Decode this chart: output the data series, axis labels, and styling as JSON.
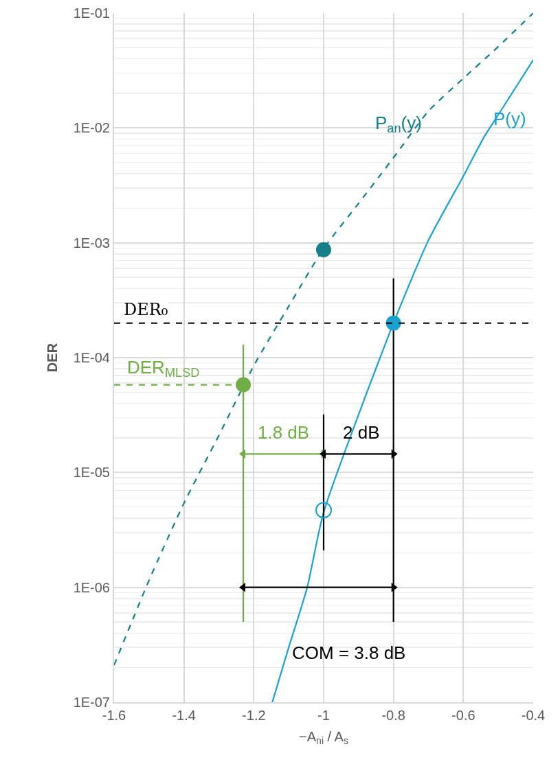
{
  "chart_data": {
    "type": "line",
    "xlabel": "−A$_{ni}$ / A$_{s}$",
    "ylabel": "DER",
    "log": "y",
    "grid": true,
    "xlim": [
      -1.6,
      -0.4
    ],
    "xticks": [
      -1.6,
      -1.4,
      -1.2,
      -1,
      -0.8,
      -0.6,
      -0.4
    ],
    "ylim": [
      1e-07,
      0.1
    ],
    "yticks": [
      {
        "value": 1e-07,
        "label": "1E-07"
      },
      {
        "value": 1e-06,
        "label": "1E-06"
      },
      {
        "value": 1e-05,
        "label": "1E-05"
      },
      {
        "value": 0.0001,
        "label": "1E-04"
      },
      {
        "value": 0.001,
        "label": "1E-03"
      },
      {
        "value": 0.01,
        "label": "1E-02"
      },
      {
        "value": 0.1,
        "label": "1E-01"
      }
    ],
    "series": [
      {
        "color": "#157f8a",
        "line_style": "dashed",
        "marker": "none",
        "x": [
          -1.6,
          -1.5,
          -1.4,
          -1.3,
          -1.2,
          -1.1,
          -1,
          -0.9,
          -0.8,
          -0.7,
          -0.6,
          -0.5,
          -0.4
        ],
        "values": [
          2.1e-07,
          1.15e-06,
          5.4e-06,
          2.1e-05,
          8.5e-05,
          0.00028,
          0.00089,
          0.0022,
          0.0055,
          0.014,
          0.027,
          0.051,
          0.1
        ]
      },
      {
        "color": "#1aa1cf",
        "line_style": "solid",
        "marker": "none",
        "x": [
          -1.147,
          -1.1,
          -1.047,
          -1,
          -0.8,
          -0.7,
          -0.6,
          -0.541,
          -0.5,
          -0.4
        ],
        "values": [
          1e-07,
          3e-07,
          1e-06,
          4.5e-06,
          0.0002,
          0.00105,
          0.0038,
          0.0083,
          0.013,
          0.039
        ]
      },
      {
        "type": "line",
        "color": "#70ad47",
        "line_style": "dashed",
        "marker": "none",
        "x": [
          -1.6,
          -1.23
        ],
        "values": [
          5.8e-05,
          5.8e-05
        ]
      },
      {
        "type": "line",
        "color": "#70ad47",
        "line_style": "solid",
        "marker": "none",
        "x": [
          -1.23,
          -1.23
        ],
        "values": [
          0.00013,
          5e-07
        ]
      },
      {
        "type": "line",
        "color": "#000000",
        "line_style": "solid",
        "marker": "none",
        "x": [
          -0.8,
          -0.8
        ],
        "values": [
          0.00049,
          5e-07
        ]
      },
      {
        "type": "line",
        "color": "#000000",
        "line_style": "solid",
        "marker": "none",
        "x": [
          -1,
          -1
        ],
        "values": [
          3.2e-05,
          2.1e-06
        ]
      },
      {
        "type": "line",
        "color": "#70ad47",
        "line_style": "solid",
        "marker": "triangle",
        "x": [
          -1.23,
          -1
        ],
        "values": [
          1.45e-05,
          1.45e-05
        ]
      },
      {
        "type": "line",
        "color": "#000000",
        "line_style": "solid",
        "marker": "triangle",
        "x": [
          -1,
          -0.8
        ],
        "values": [
          1.45e-05,
          1.45e-05
        ]
      },
      {
        "type": "line",
        "color": "#000000",
        "line_style": "solid",
        "marker": "triangle",
        "x": [
          -1.23,
          -0.8
        ],
        "values": [
          1e-06,
          1e-06
        ]
      },
      {
        "type": "scatter",
        "color": "#157f8a",
        "marker": "circle",
        "x": [
          -1
        ],
        "values": [
          0.00087
        ]
      },
      {
        "type": "scatter",
        "color": "#1aa1cf",
        "marker": "circle",
        "x": [
          -0.8
        ],
        "values": [
          0.0002
        ]
      },
      {
        "type": "scatter",
        "color": "#70ad47",
        "marker": "circle",
        "x": [
          -1.23
        ],
        "values": [
          5.8e-05
        ]
      },
      {
        "type": "scatter",
        "color": "#1aa1cf",
        "marker": "circle-open",
        "x": [
          -1
        ],
        "values": [
          4.7e-06
        ]
      }
    ],
    "ref_lines": [
      {
        "axis": "y",
        "value": 0.0002,
        "label": "DER₀",
        "color": "#000000",
        "line_style": "dashed"
      }
    ],
    "annotations": [
      {
        "text": "P$_{an}$(y)",
        "x": -0.7,
        "y": 0.014
      },
      {
        "text": "P(y)",
        "x": -0.541,
        "y": 0.0083
      },
      {
        "text": "DER$_{MLSD}$",
        "x": -1.46,
        "y": 5.8e-05
      },
      {
        "text": "1.8 dB",
        "x": -1.115,
        "y": 1.45e-05
      },
      {
        "text": "2 dB",
        "x": -0.8,
        "y": 1.45e-05
      },
      "COM = 3.8 dB"
    ]
  }
}
